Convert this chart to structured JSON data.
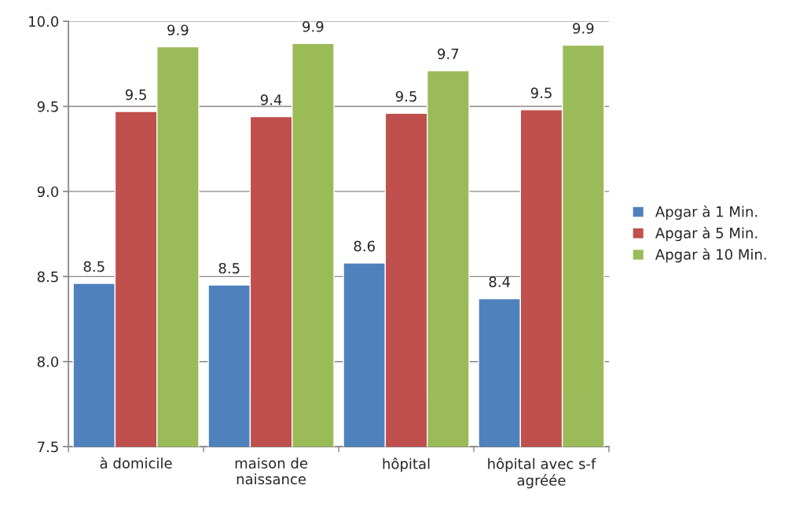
{
  "chart_data": {
    "type": "bar",
    "categories": [
      "à domicile",
      "maison de naissance",
      "hôpital",
      "hôpital avec s-f agréée"
    ],
    "series": [
      {
        "name": "Apgar à 1 Min.",
        "color": "#4f81bd",
        "values": [
          8.46,
          8.45,
          8.58,
          8.37
        ],
        "value_labels": [
          "8.5",
          "8.5",
          "8.6",
          "8.4"
        ]
      },
      {
        "name": "Apgar à 5 Min.",
        "color": "#c0504d",
        "values": [
          9.47,
          9.44,
          9.46,
          9.48
        ],
        "value_labels": [
          "9.5",
          "9.4",
          "9.5",
          "9.5"
        ]
      },
      {
        "name": "Apgar à 10 Min.",
        "color": "#9bbb59",
        "values": [
          9.85,
          9.87,
          9.71,
          9.86
        ],
        "value_labels": [
          "9.9",
          "9.9",
          "9.7",
          "9.9"
        ]
      }
    ],
    "ylim": [
      7.5,
      10.0
    ],
    "yticks": [
      {
        "value": 7.5,
        "label": "7.5"
      },
      {
        "value": 8.0,
        "label": "8.0"
      },
      {
        "value": 8.5,
        "label": "8.5"
      },
      {
        "value": 9.0,
        "label": "9.0"
      },
      {
        "value": 9.5,
        "label": "9.5"
      },
      {
        "value": 10.0,
        "label": "10.0"
      }
    ],
    "grid": "y",
    "legend": "right"
  }
}
